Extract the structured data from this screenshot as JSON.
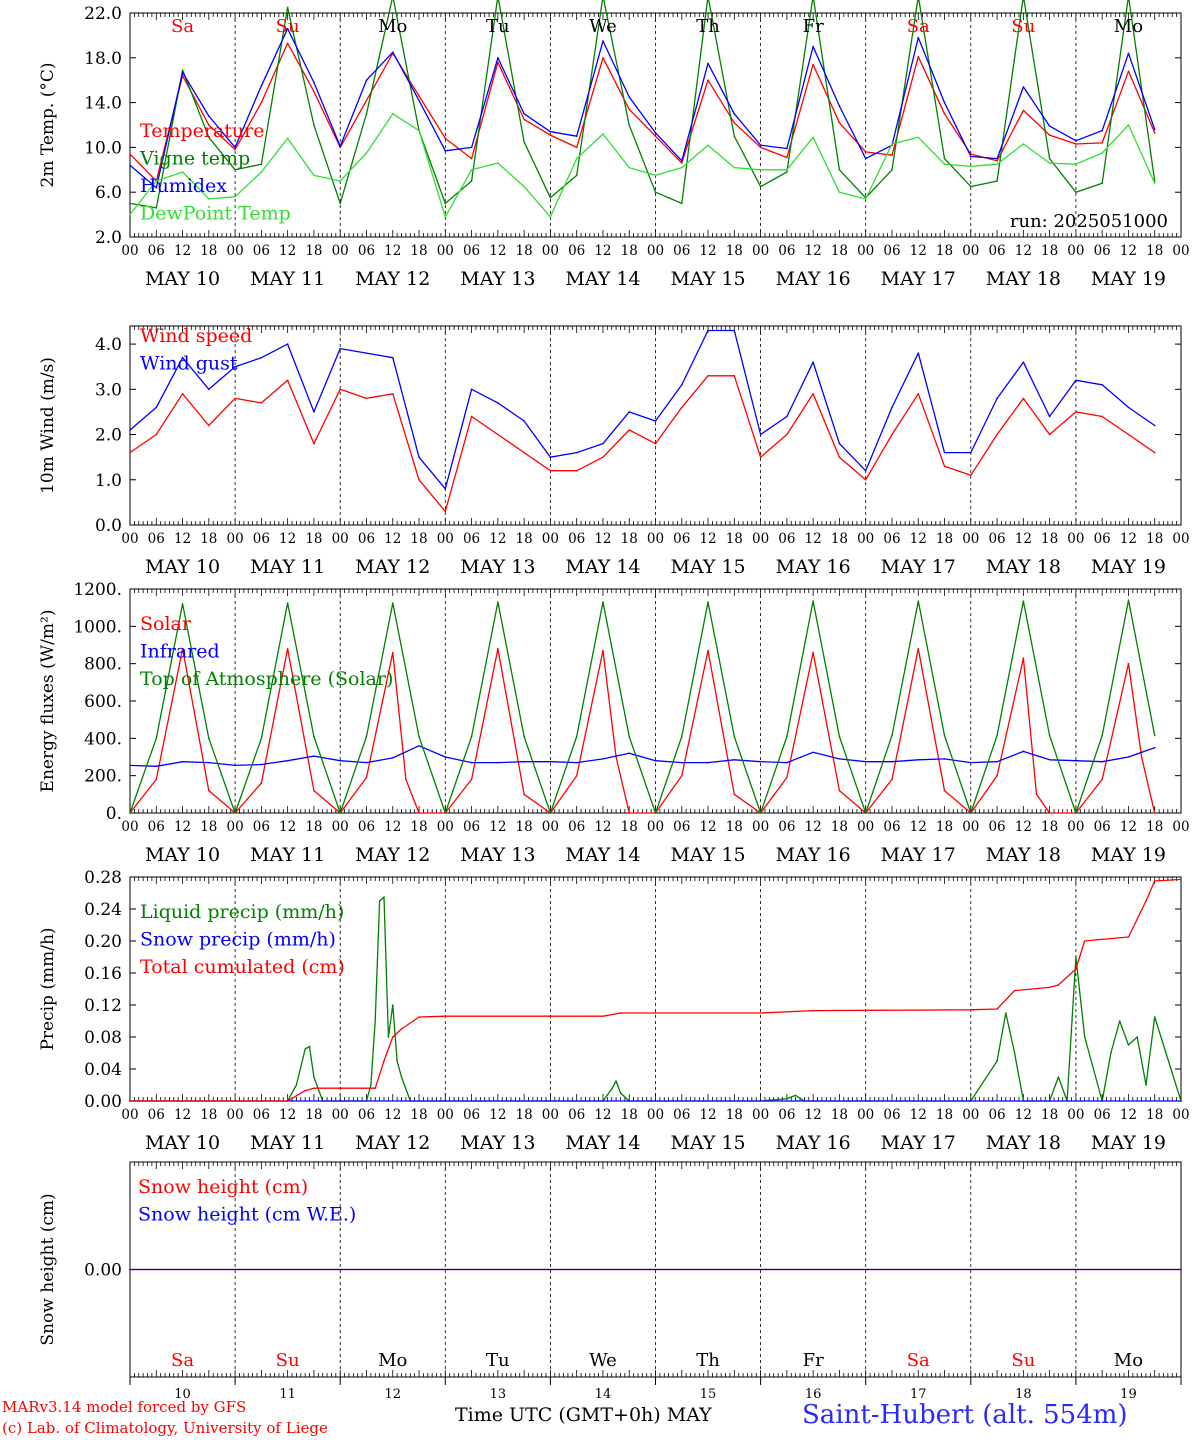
{
  "days": [
    "Sa",
    "Su",
    "Mo",
    "Tu",
    "We",
    "Th",
    "Fr",
    "Sa",
    "Su",
    "Mo"
  ],
  "weekend_flags": [
    true,
    true,
    false,
    false,
    false,
    false,
    false,
    true,
    true,
    false
  ],
  "date_labels": [
    "MAY 10",
    "MAY 11",
    "MAY 12",
    "MAY 13",
    "MAY 14",
    "MAY 15",
    "MAY 16",
    "MAY 17",
    "MAY 18",
    "MAY 19"
  ],
  "hour_ticks": [
    "00",
    "06",
    "12",
    "18"
  ],
  "bottom_day_numbers": [
    "10",
    "11",
    "12",
    "13",
    "14",
    "15",
    "16",
    "17",
    "18",
    "19"
  ],
  "footer": {
    "credit_line1": "MARv3.14 model forced by GFS",
    "credit_line2": "(c) Lab. of Climatology, University of Liege",
    "xaxis_title": "Time UTC (GMT+0h)",
    "xaxis_month": "MAY",
    "station": "Saint-Hubert (alt. 554m)"
  },
  "chart_data": [
    {
      "type": "line",
      "ylabel": "2m Temp. (°C)",
      "yticks": [
        "22.0",
        "18.0",
        "14.0",
        "10.0",
        "6.0",
        "2.0"
      ],
      "ylim": [
        2,
        22
      ],
      "annotation": "run: 2025051000",
      "x_unit": "hours since May 10 00 UTC",
      "series": [
        {
          "name": "Temperature",
          "color": "#ff0000",
          "x": [
            0,
            6,
            12,
            18,
            24,
            30,
            36,
            42,
            48,
            54,
            60,
            66,
            72,
            78,
            84,
            90,
            96,
            102,
            108,
            114,
            120,
            126,
            132,
            138,
            144,
            150,
            156,
            162,
            168,
            174,
            180,
            186,
            192,
            198,
            204,
            210,
            216,
            222,
            228,
            234
          ],
          "values": [
            9.4,
            7.0,
            16.4,
            12.0,
            9.8,
            14.0,
            19.3,
            15.0,
            10.0,
            14.2,
            18.4,
            14.6,
            10.8,
            9.0,
            17.6,
            12.5,
            11.1,
            10.0,
            18.0,
            13.4,
            11.0,
            8.6,
            16.0,
            12.2,
            10.0,
            9.1,
            17.4,
            12.2,
            9.6,
            9.3,
            18.1,
            13.0,
            9.4,
            8.8,
            13.3,
            11.1,
            10.3,
            10.4,
            16.8,
            11.3
          ]
        },
        {
          "name": "Vigne temp",
          "color": "#008000",
          "x": [
            0,
            6,
            12,
            18,
            24,
            30,
            36,
            42,
            48,
            54,
            60,
            66,
            72,
            78,
            84,
            90,
            96,
            102,
            108,
            114,
            120,
            126,
            132,
            138,
            144,
            150,
            156,
            162,
            168,
            174,
            180,
            186,
            192,
            198,
            204,
            210,
            216,
            222,
            228,
            234
          ],
          "values": [
            5.0,
            4.6,
            16.9,
            10.9,
            8.0,
            8.5,
            22.5,
            12.0,
            5.0,
            13.0,
            23.5,
            11.5,
            5.0,
            7.0,
            23.5,
            10.5,
            5.5,
            7.5,
            23.5,
            12.0,
            6.0,
            5.0,
            23.5,
            11.0,
            6.5,
            7.8,
            23.5,
            8.0,
            5.5,
            8.0,
            23.5,
            9.0,
            6.5,
            7.0,
            23.5,
            9.0,
            6.0,
            6.8,
            23.5,
            7.0
          ]
        },
        {
          "name": "Humidex",
          "color": "#0000ff",
          "x": [
            0,
            6,
            12,
            18,
            24,
            30,
            36,
            42,
            48,
            54,
            60,
            66,
            72,
            78,
            84,
            90,
            96,
            102,
            108,
            114,
            120,
            126,
            132,
            138,
            144,
            150,
            156,
            162,
            168,
            174,
            180,
            186,
            192,
            198,
            204,
            210,
            216,
            222,
            228,
            234
          ],
          "values": [
            8.4,
            6.4,
            16.7,
            12.8,
            10.0,
            15.5,
            20.6,
            15.8,
            10.1,
            16.0,
            18.5,
            14.2,
            9.7,
            10.0,
            18.0,
            13.0,
            11.4,
            11.0,
            19.5,
            14.5,
            11.3,
            8.8,
            17.5,
            13.0,
            10.2,
            9.9,
            19.0,
            13.7,
            9.0,
            10.2,
            19.8,
            14.0,
            9.2,
            9.0,
            15.4,
            11.9,
            10.6,
            11.5,
            18.4,
            11.6
          ]
        },
        {
          "name": "DewPoint Temp",
          "color": "#33dd33",
          "x": [
            0,
            6,
            12,
            18,
            24,
            30,
            36,
            42,
            48,
            54,
            60,
            66,
            72,
            78,
            84,
            90,
            96,
            102,
            108,
            114,
            120,
            126,
            132,
            138,
            144,
            150,
            156,
            162,
            168,
            174,
            180,
            186,
            192,
            198,
            204,
            210,
            216,
            222,
            228,
            234
          ],
          "values": [
            4.0,
            7.0,
            7.8,
            5.4,
            5.6,
            7.8,
            10.8,
            7.5,
            7.0,
            9.5,
            13.0,
            11.5,
            3.8,
            8.0,
            8.6,
            6.5,
            3.8,
            9.0,
            11.2,
            8.2,
            7.5,
            8.2,
            10.2,
            8.2,
            8.0,
            8.0,
            10.9,
            6.0,
            5.4,
            10.3,
            10.9,
            8.5,
            8.3,
            8.5,
            10.3,
            8.6,
            8.5,
            9.5,
            12.0,
            6.8
          ]
        }
      ]
    },
    {
      "type": "line",
      "ylabel": "10m Wind (m/s)",
      "yticks": [
        "4.0",
        "3.0",
        "2.0",
        "1.0",
        "0.0"
      ],
      "ylim": [
        0,
        4.4
      ],
      "x_unit": "hours since May 10 00 UTC",
      "series": [
        {
          "name": "Wind speed",
          "color": "#ff0000",
          "x": [
            0,
            6,
            12,
            18,
            24,
            30,
            36,
            42,
            48,
            54,
            60,
            66,
            72,
            78,
            84,
            90,
            96,
            102,
            108,
            114,
            120,
            126,
            132,
            138,
            144,
            150,
            156,
            162,
            168,
            174,
            180,
            186,
            192,
            198,
            204,
            210,
            216,
            222,
            228,
            234
          ],
          "values": [
            1.6,
            2.0,
            2.9,
            2.2,
            2.8,
            2.7,
            3.2,
            1.8,
            3.0,
            2.8,
            2.9,
            1.0,
            0.3,
            2.4,
            2.0,
            1.6,
            1.2,
            1.2,
            1.5,
            2.1,
            1.8,
            2.6,
            3.3,
            3.3,
            1.5,
            2.0,
            2.9,
            1.5,
            1.0,
            2.0,
            2.9,
            1.3,
            1.1,
            2.0,
            2.8,
            2.0,
            2.5,
            2.4,
            2.0,
            1.6
          ]
        },
        {
          "name": "Wind gust",
          "color": "#0000ff",
          "x": [
            0,
            6,
            12,
            18,
            24,
            30,
            36,
            42,
            48,
            54,
            60,
            66,
            72,
            78,
            84,
            90,
            96,
            102,
            108,
            114,
            120,
            126,
            132,
            138,
            144,
            150,
            156,
            162,
            168,
            174,
            180,
            186,
            192,
            198,
            204,
            210,
            216,
            222,
            228,
            234
          ],
          "values": [
            2.1,
            2.6,
            3.7,
            3.0,
            3.5,
            3.7,
            4.0,
            2.5,
            3.9,
            3.8,
            3.7,
            1.5,
            0.8,
            3.0,
            2.7,
            2.3,
            1.5,
            1.6,
            1.8,
            2.5,
            2.3,
            3.1,
            4.3,
            4.3,
            2.0,
            2.4,
            3.6,
            1.8,
            1.2,
            2.6,
            3.8,
            1.6,
            1.6,
            2.8,
            3.6,
            2.4,
            3.2,
            3.1,
            2.6,
            2.2
          ]
        }
      ]
    },
    {
      "type": "line",
      "ylabel": "Energy fluxes (W/m²)",
      "yticks": [
        "1200.",
        "1000.",
        "800.",
        "600.",
        "400.",
        "200.",
        "0."
      ],
      "ylim": [
        0,
        1200
      ],
      "x_unit": "hours since May 10 00 UTC",
      "series": [
        {
          "name": "Solar",
          "color": "#ff0000",
          "x": [
            0,
            6,
            12,
            18,
            24,
            30,
            36,
            42,
            48,
            54,
            60,
            63,
            66,
            72,
            78,
            84,
            90,
            96,
            102,
            108,
            111,
            114,
            120,
            126,
            132,
            138,
            144,
            150,
            156,
            162,
            168,
            174,
            180,
            186,
            192,
            198,
            204,
            207,
            210,
            216,
            222,
            228,
            231,
            234
          ],
          "values": [
            0,
            180,
            880,
            120,
            0,
            160,
            880,
            120,
            0,
            190,
            860,
            180,
            0,
            0,
            180,
            880,
            100,
            0,
            200,
            870,
            300,
            0,
            0,
            200,
            870,
            100,
            0,
            190,
            860,
            120,
            0,
            180,
            880,
            120,
            0,
            200,
            830,
            100,
            0,
            0,
            180,
            800,
            300,
            0
          ]
        },
        {
          "name": "Infrared",
          "color": "#0000ff",
          "x": [
            0,
            6,
            12,
            18,
            24,
            30,
            36,
            42,
            48,
            54,
            60,
            66,
            72,
            78,
            84,
            90,
            96,
            102,
            108,
            114,
            120,
            126,
            132,
            138,
            144,
            150,
            156,
            162,
            168,
            174,
            180,
            186,
            192,
            198,
            204,
            210,
            216,
            222,
            228,
            234
          ],
          "values": [
            255,
            250,
            275,
            270,
            255,
            260,
            280,
            305,
            280,
            270,
            295,
            360,
            300,
            270,
            270,
            275,
            275,
            270,
            290,
            320,
            280,
            270,
            270,
            285,
            275,
            270,
            325,
            290,
            275,
            275,
            285,
            290,
            270,
            275,
            330,
            285,
            280,
            275,
            300,
            350
          ]
        },
        {
          "name": "Top of Atmosphere (Solar)",
          "color": "#008000",
          "x": [
            0,
            6,
            12,
            18,
            24,
            30,
            36,
            42,
            48,
            54,
            60,
            66,
            72,
            78,
            84,
            90,
            96,
            102,
            108,
            114,
            120,
            126,
            132,
            138,
            144,
            150,
            156,
            162,
            168,
            174,
            180,
            186,
            192,
            198,
            204,
            210,
            216,
            222,
            228,
            234
          ],
          "values": [
            0,
            400,
            1120,
            400,
            0,
            400,
            1125,
            410,
            0,
            410,
            1125,
            410,
            0,
            410,
            1130,
            410,
            0,
            410,
            1130,
            410,
            0,
            410,
            1130,
            410,
            0,
            410,
            1135,
            410,
            0,
            415,
            1135,
            415,
            0,
            415,
            1135,
            415,
            0,
            415,
            1140,
            415
          ]
        }
      ]
    },
    {
      "type": "line",
      "ylabel": "Precip (mm/h)",
      "yticks": [
        "0.28",
        "0.24",
        "0.20",
        "0.16",
        "0.12",
        "0.08",
        "0.04",
        "0.00"
      ],
      "ylim": [
        0,
        0.28
      ],
      "x_unit": "hours since May 10 00 UTC",
      "series": [
        {
          "name": "Liquid precip (mm/h)",
          "color": "#008000",
          "x": [
            0,
            36,
            38,
            40,
            41,
            42,
            44,
            48,
            54,
            55,
            56,
            57,
            58,
            59,
            60,
            61,
            62,
            64,
            66,
            72,
            108,
            110,
            111,
            112,
            114,
            144,
            150,
            152,
            154,
            156,
            192,
            198,
            200,
            202,
            204,
            210,
            212,
            214,
            216,
            218,
            222,
            224,
            226,
            228,
            230,
            232,
            234,
            240
          ],
          "values": [
            0,
            0,
            0.02,
            0.065,
            0.068,
            0.03,
            0,
            0,
            0,
            0.02,
            0.1,
            0.25,
            0.255,
            0.08,
            0.12,
            0.05,
            0.03,
            0,
            0,
            0,
            0,
            0.015,
            0.025,
            0.01,
            0,
            0,
            0.003,
            0.007,
            0,
            0,
            0,
            0.05,
            0.11,
            0.06,
            0,
            0,
            0.03,
            0,
            0.18,
            0.08,
            0,
            0.06,
            0.1,
            0.07,
            0.08,
            0.02,
            0.105,
            0
          ]
        },
        {
          "name": "Snow precip (mm/h)",
          "color": "#0000ff",
          "x": [
            0,
            240
          ],
          "values": [
            0,
            0
          ]
        },
        {
          "name": "Total cumulated (cm)",
          "color": "#ff0000",
          "x": [
            0,
            36,
            40,
            42,
            48,
            56,
            58,
            60,
            62,
            66,
            72,
            96,
            108,
            112,
            120,
            144,
            156,
            192,
            198,
            202,
            210,
            212,
            216,
            218,
            222,
            228,
            232,
            234,
            240
          ],
          "values": [
            0,
            0,
            0.013,
            0.016,
            0.016,
            0.016,
            0.05,
            0.08,
            0.09,
            0.105,
            0.106,
            0.106,
            0.106,
            0.11,
            0.11,
            0.11,
            0.113,
            0.114,
            0.115,
            0.138,
            0.142,
            0.145,
            0.165,
            0.2,
            0.202,
            0.205,
            0.25,
            0.275,
            0.277
          ]
        }
      ]
    },
    {
      "type": "line",
      "ylabel": "Snow height (cm)",
      "yticks": [
        "0.00"
      ],
      "ylim": [
        -1,
        1
      ],
      "x_unit": "hours since May 10 00 UTC",
      "series": [
        {
          "name": "Snow height (cm)",
          "color": "#ff0000",
          "x": [
            0,
            240
          ],
          "values": [
            0,
            0
          ]
        },
        {
          "name": "Snow height (cm W.E.)",
          "color": "#0000ff",
          "x": [
            0,
            240
          ],
          "values": [
            0,
            0
          ]
        }
      ]
    }
  ]
}
